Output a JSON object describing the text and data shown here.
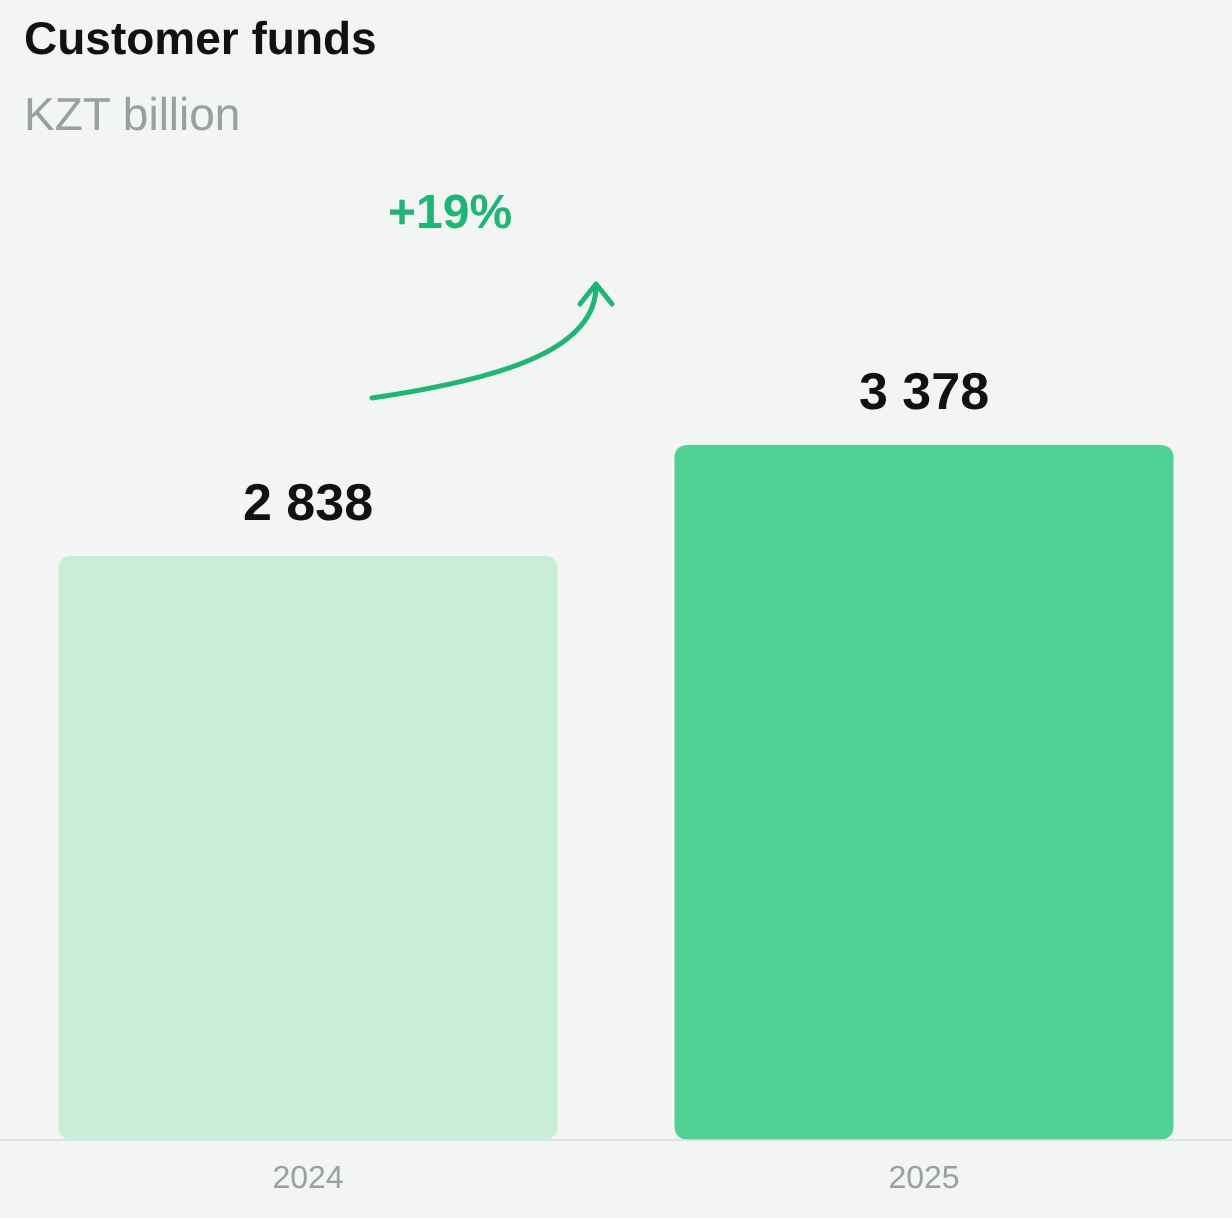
{
  "chart_data": {
    "type": "bar",
    "title": "Customer funds",
    "subtitle": "KZT billion",
    "categories": [
      "2024",
      "2025"
    ],
    "values": [
      2838,
      3378
    ],
    "colors": [
      "#c8eed8",
      "#4fd193"
    ],
    "value_labels": [
      "2 838",
      "3 378"
    ],
    "annotations": [
      "+19%"
    ],
    "grid": false,
    "legend": false,
    "tick_labels": "x"
  }
}
